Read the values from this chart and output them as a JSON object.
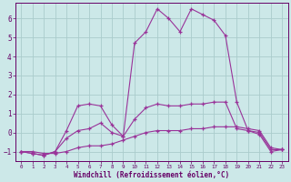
{
  "background_color": "#cce8e8",
  "grid_color": "#aacccc",
  "line_color": "#993399",
  "marker": "+",
  "xlabel": "Windchill (Refroidissement éolien,°C)",
  "xlabel_color": "#660066",
  "tick_color": "#660066",
  "ylim": [
    -1.5,
    6.8
  ],
  "xlim": [
    -0.5,
    23.5
  ],
  "yticks": [
    -1,
    0,
    1,
    2,
    3,
    4,
    5,
    6
  ],
  "xticks": [
    0,
    1,
    2,
    3,
    4,
    5,
    6,
    7,
    8,
    9,
    10,
    11,
    12,
    13,
    14,
    15,
    16,
    17,
    18,
    19,
    20,
    21,
    22,
    23
  ],
  "series": [
    [
      [
        0,
        -1
      ],
      [
        1,
        -1
      ],
      [
        2,
        -1.1
      ],
      [
        3,
        -1.1
      ],
      [
        4,
        -1.0
      ],
      [
        5,
        -0.8
      ],
      [
        6,
        -0.7
      ],
      [
        7,
        -0.7
      ],
      [
        8,
        -0.6
      ],
      [
        9,
        -0.4
      ],
      [
        10,
        -0.2
      ],
      [
        11,
        -0.0
      ],
      [
        12,
        0.1
      ],
      [
        13,
        0.1
      ],
      [
        14,
        0.1
      ],
      [
        15,
        0.2
      ],
      [
        16,
        0.2
      ],
      [
        17,
        0.3
      ],
      [
        18,
        0.3
      ],
      [
        19,
        0.3
      ],
      [
        20,
        0.2
      ],
      [
        21,
        0.1
      ],
      [
        22,
        -0.8
      ],
      [
        23,
        -0.9
      ]
    ],
    [
      [
        0,
        -1
      ],
      [
        1,
        -1.1
      ],
      [
        2,
        -1.2
      ],
      [
        3,
        -1.0
      ],
      [
        4,
        -0.3
      ],
      [
        5,
        0.1
      ],
      [
        6,
        0.2
      ],
      [
        7,
        0.5
      ],
      [
        8,
        0.0
      ],
      [
        9,
        -0.2
      ],
      [
        10,
        0.7
      ],
      [
        11,
        1.3
      ],
      [
        12,
        1.5
      ],
      [
        13,
        1.4
      ],
      [
        14,
        1.4
      ],
      [
        15,
        1.5
      ],
      [
        16,
        1.5
      ],
      [
        17,
        1.6
      ],
      [
        18,
        1.6
      ],
      [
        19,
        0.2
      ],
      [
        20,
        0.1
      ],
      [
        21,
        0.0
      ],
      [
        22,
        -0.9
      ],
      [
        23,
        -0.9
      ]
    ],
    [
      [
        0,
        -1
      ],
      [
        1,
        -1.1
      ],
      [
        2,
        -1.2
      ],
      [
        3,
        -1.0
      ],
      [
        4,
        0.1
      ],
      [
        5,
        1.4
      ],
      [
        6,
        1.5
      ],
      [
        7,
        1.4
      ],
      [
        8,
        0.4
      ],
      [
        9,
        -0.2
      ],
      [
        10,
        4.7
      ],
      [
        11,
        5.3
      ],
      [
        12,
        6.5
      ],
      [
        13,
        6.0
      ],
      [
        14,
        5.3
      ],
      [
        15,
        6.5
      ],
      [
        16,
        6.2
      ],
      [
        17,
        5.9
      ],
      [
        18,
        5.1
      ],
      [
        19,
        1.6
      ],
      [
        20,
        0.1
      ],
      [
        21,
        -0.1
      ],
      [
        22,
        -1.0
      ],
      [
        23,
        -0.9
      ]
    ]
  ]
}
